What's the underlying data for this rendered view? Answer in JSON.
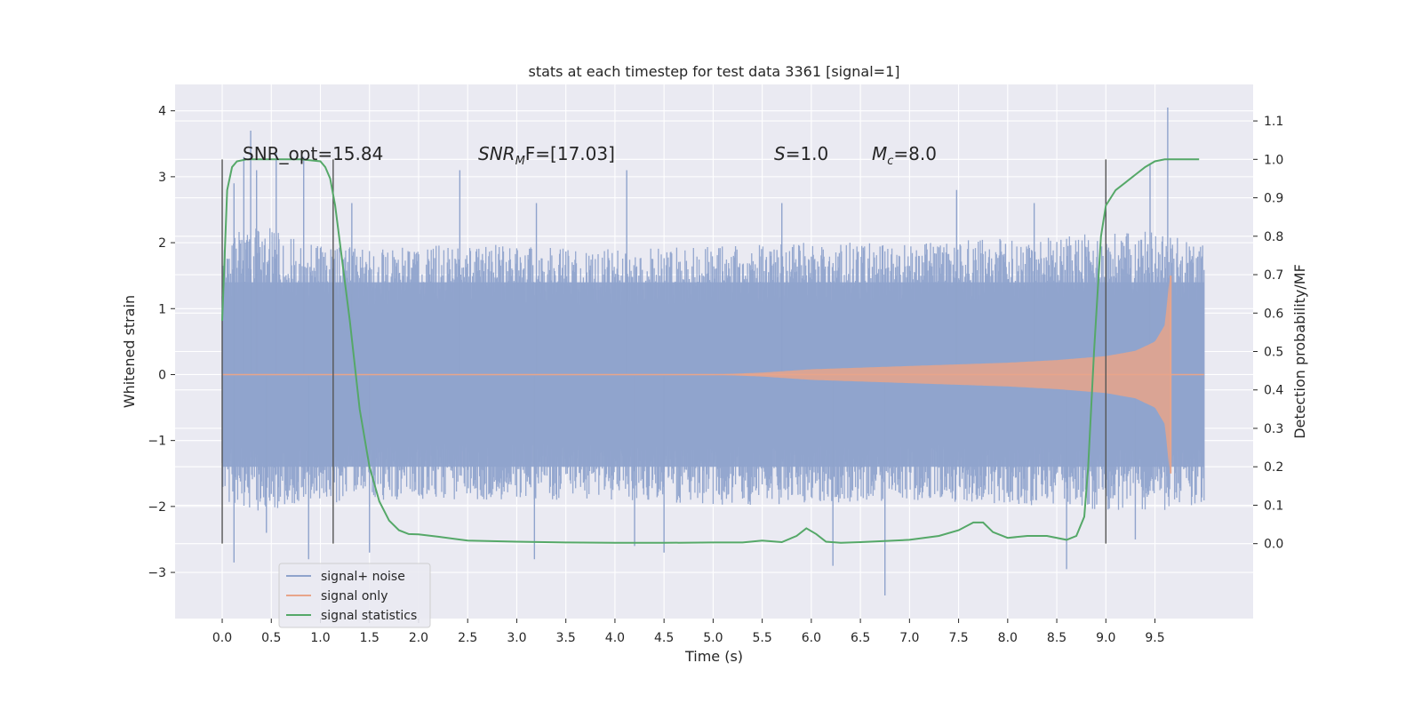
{
  "chart_data": {
    "type": "line",
    "title": "stats at each timestep for test data 3361 [signal=1]",
    "xlabel": "Time (s)",
    "ylabel": "Whitened strain",
    "ylabel_right": "Detection probability/MF",
    "xlim": [
      -0.48,
      10.5
    ],
    "ylim": [
      -3.7,
      4.4
    ],
    "ylim_right": [
      -0.195,
      1.195
    ],
    "x_ticks": [
      "0.0",
      "0.5",
      "1.0",
      "1.5",
      "2.0",
      "2.5",
      "3.0",
      "3.5",
      "4.0",
      "4.5",
      "5.0",
      "5.5",
      "6.0",
      "6.5",
      "7.0",
      "7.5",
      "8.0",
      "8.5",
      "9.0",
      "9.5"
    ],
    "y_ticks": [
      "4",
      "3",
      "2",
      "1",
      "0",
      "−1",
      "−2",
      "−3"
    ],
    "y_ticks_right": [
      "1.1",
      "1.0",
      "0.9",
      "0.8",
      "0.7",
      "0.6",
      "0.5",
      "0.4",
      "0.3",
      "0.2",
      "0.1",
      "0.0"
    ],
    "grid": true,
    "legend_placement": "lower-left",
    "annotations": {
      "snr_opt": "SNR_opt=15.84",
      "snr_mf_main": "SNR",
      "snr_mf_sub": "M",
      "snr_mf_rest": "F=[17.03]",
      "s_main": "S",
      "s_rest": "=1.0",
      "mc_main": "M",
      "mc_sub": "c",
      "mc_rest": "=8.0"
    },
    "vertical_markers": [
      0.0,
      1.13,
      9.0
    ],
    "series": [
      {
        "name": "signal+ noise",
        "color": "#8fa3cc",
        "axis": "left",
        "t_start": 0.0,
        "t_end": 10.0,
        "band_envelope": {
          "t": [
            0.0,
            0.3,
            0.8,
            1.5,
            2.5,
            4.0,
            5.5,
            7.0,
            8.5,
            9.5,
            10.0
          ],
          "upper": [
            2.0,
            2.3,
            2.1,
            1.9,
            2.0,
            1.9,
            2.0,
            2.0,
            2.1,
            2.2,
            2.0
          ],
          "lower": [
            -1.9,
            -2.1,
            -2.0,
            -1.9,
            -1.9,
            -1.9,
            -2.0,
            -1.9,
            -2.0,
            -2.1,
            -2.0
          ]
        },
        "spikes": [
          {
            "t": 0.12,
            "y": 2.9
          },
          {
            "t": 0.22,
            "y": 3.3
          },
          {
            "t": 0.29,
            "y": 3.7
          },
          {
            "t": 0.35,
            "y": 3.1
          },
          {
            "t": 0.55,
            "y": 3.4
          },
          {
            "t": 0.83,
            "y": 3.3
          },
          {
            "t": 1.32,
            "y": 2.6
          },
          {
            "t": 2.42,
            "y": 3.1
          },
          {
            "t": 3.2,
            "y": 2.6
          },
          {
            "t": 4.12,
            "y": 3.1
          },
          {
            "t": 5.7,
            "y": 2.6
          },
          {
            "t": 7.48,
            "y": 2.8
          },
          {
            "t": 8.27,
            "y": 2.6
          },
          {
            "t": 9.0,
            "y": 2.8
          },
          {
            "t": 9.45,
            "y": 3.2
          },
          {
            "t": 9.63,
            "y": 4.05
          },
          {
            "t": 0.12,
            "y": -2.85
          },
          {
            "t": 0.45,
            "y": -2.4
          },
          {
            "t": 0.88,
            "y": -2.8
          },
          {
            "t": 1.5,
            "y": -2.7
          },
          {
            "t": 3.18,
            "y": -2.8
          },
          {
            "t": 4.2,
            "y": -2.6
          },
          {
            "t": 4.5,
            "y": -2.7
          },
          {
            "t": 6.22,
            "y": -2.9
          },
          {
            "t": 6.75,
            "y": -3.35
          },
          {
            "t": 8.6,
            "y": -2.95
          },
          {
            "t": 9.3,
            "y": -2.5
          }
        ]
      },
      {
        "name": "signal only",
        "color": "#e8a58a",
        "axis": "left",
        "description_amplitude": {
          "t": [
            0.0,
            5.0,
            5.5,
            6.0,
            7.0,
            8.0,
            8.5,
            9.0,
            9.3,
            9.5,
            9.6,
            9.65,
            9.67,
            10.0
          ],
          "amp": [
            0.0,
            0.0,
            0.03,
            0.08,
            0.13,
            0.18,
            0.22,
            0.28,
            0.36,
            0.5,
            0.75,
            1.5,
            0.0,
            0.0
          ]
        }
      },
      {
        "name": "signal statistics",
        "color": "#55a868",
        "axis": "right",
        "x": [
          0.0,
          0.05,
          0.1,
          0.15,
          0.25,
          0.5,
          0.8,
          1.0,
          1.05,
          1.1,
          1.15,
          1.2,
          1.3,
          1.4,
          1.5,
          1.6,
          1.7,
          1.8,
          1.9,
          2.0,
          2.2,
          2.5,
          3.0,
          3.5,
          4.0,
          4.5,
          5.0,
          5.3,
          5.5,
          5.7,
          5.85,
          5.95,
          6.05,
          6.15,
          6.3,
          6.5,
          7.0,
          7.3,
          7.5,
          7.65,
          7.75,
          7.85,
          8.0,
          8.2,
          8.4,
          8.6,
          8.7,
          8.78,
          8.82,
          8.88,
          8.95,
          9.0,
          9.1,
          9.2,
          9.3,
          9.4,
          9.5,
          9.6,
          9.8,
          9.95
        ],
        "y": [
          0.58,
          0.92,
          0.98,
          0.995,
          1.0,
          1.0,
          1.0,
          0.995,
          0.98,
          0.95,
          0.88,
          0.78,
          0.58,
          0.35,
          0.2,
          0.11,
          0.06,
          0.035,
          0.025,
          0.024,
          0.018,
          0.008,
          0.005,
          0.003,
          0.002,
          0.002,
          0.003,
          0.003,
          0.008,
          0.004,
          0.02,
          0.04,
          0.025,
          0.005,
          0.002,
          0.004,
          0.01,
          0.02,
          0.035,
          0.055,
          0.055,
          0.03,
          0.015,
          0.02,
          0.02,
          0.01,
          0.02,
          0.07,
          0.2,
          0.5,
          0.8,
          0.88,
          0.92,
          0.94,
          0.96,
          0.98,
          0.995,
          1.0,
          1.0,
          1.0
        ]
      }
    ]
  }
}
